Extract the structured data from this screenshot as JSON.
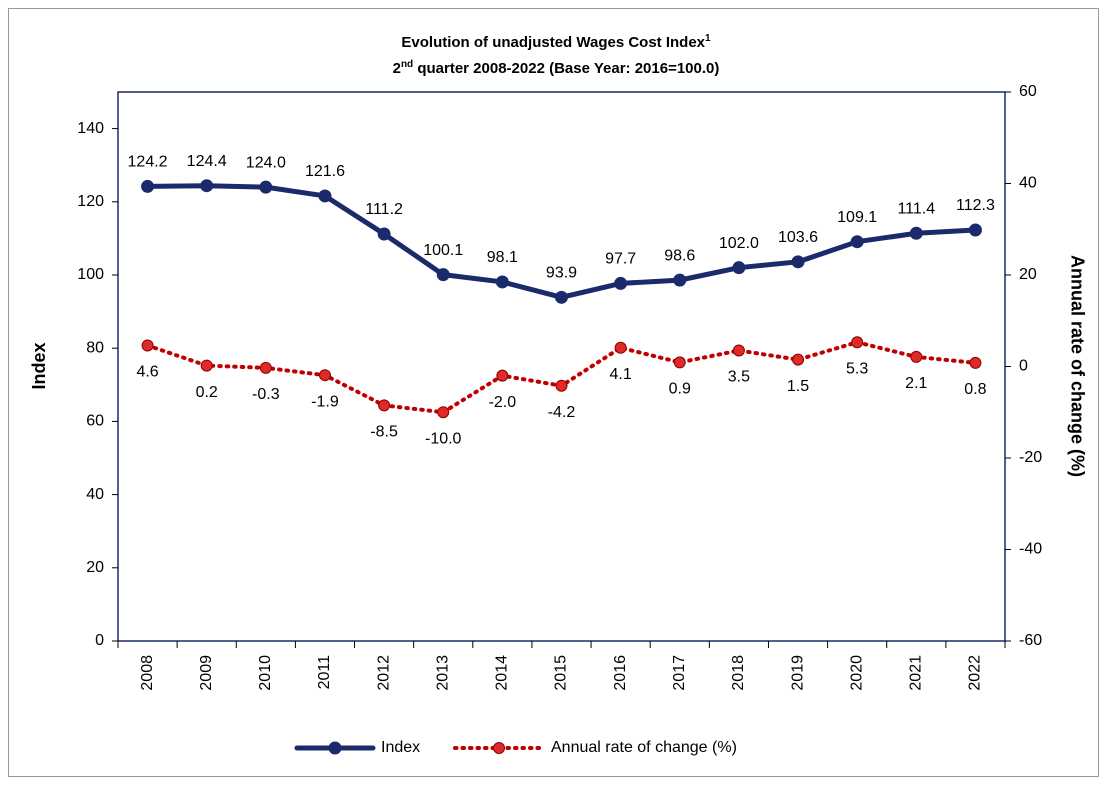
{
  "chart_data": {
    "type": "line",
    "title": {
      "text": "Evolution of unadjusted Wages Cost Index",
      "sup": "1"
    },
    "subtitle": {
      "before": "2",
      "sup": "nd",
      "after": " quarter 2008-2022 (Base Year: 2016=100.0)"
    },
    "y_label": "Index",
    "y2_label": "Annual rate of change (%)",
    "categories": [
      "2008",
      "2009",
      "2010",
      "2011",
      "2012",
      "2013",
      "2014",
      "2015",
      "2016",
      "2017",
      "2018",
      "2019",
      "2020",
      "2021",
      "2022"
    ],
    "series": [
      {
        "name": "Index",
        "color": "#1b2a6b",
        "style": "solid",
        "values": [
          124.2,
          124.4,
          124.0,
          121.6,
          111.2,
          100.1,
          98.1,
          93.9,
          97.7,
          98.6,
          102.0,
          103.6,
          109.1,
          111.4,
          112.3
        ],
        "value_labels": [
          "124.2",
          "124.4",
          "124.0",
          "121.6",
          "111.2",
          "100.1",
          "98.1",
          "93.9",
          "97.7",
          "98.6",
          "102.0",
          "103.6",
          "109.1",
          "111.4",
          "112.3"
        ]
      },
      {
        "name": "Annual rate of change (%)",
        "color": "#c00000",
        "style": "dotted",
        "axis": "y2",
        "values": [
          4.6,
          0.2,
          -0.3,
          -1.9,
          -8.5,
          -10.0,
          -2.0,
          -4.2,
          4.1,
          0.9,
          3.5,
          1.5,
          5.3,
          2.1,
          0.8
        ],
        "value_labels": [
          "4.6",
          "0.2",
          "-0.3",
          "-1.9",
          "-8.5",
          "-10.0",
          "-2.0",
          "-4.2",
          "4.1",
          "0.9",
          "3.5",
          "1.5",
          "5.3",
          "2.1",
          "0.8"
        ]
      }
    ],
    "ylim": [
      0,
      150
    ],
    "yticks": [
      0,
      20,
      40,
      60,
      80,
      100,
      120,
      140
    ],
    "y2lim": [
      -60,
      60
    ],
    "y2ticks": [
      -60,
      -40,
      -20,
      0,
      20,
      40,
      60
    ],
    "grid": false,
    "legend": "bottom"
  }
}
